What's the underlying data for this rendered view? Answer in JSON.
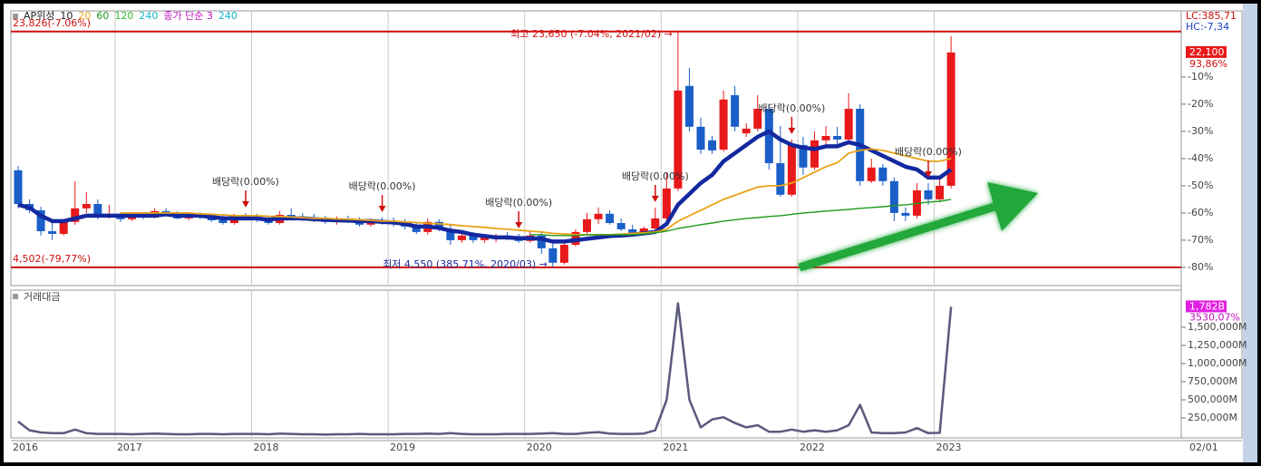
{
  "chart_data": [
    {
      "type": "candlestick",
      "legend": [
        {
          "text": "AP위성",
          "color": "#222222"
        },
        {
          "text": "10",
          "color": "#222222"
        },
        {
          "text": "20",
          "color": "#e8a317"
        },
        {
          "text": "60",
          "color": "#1e9b1e"
        },
        {
          "text": "120",
          "color": "#2fbf2f"
        },
        {
          "text": "240",
          "color": "#10b8c8"
        },
        {
          "text": "종가 단순 3",
          "color": "#c010c0"
        },
        {
          "text": "240",
          "color": "#10b8c8"
        }
      ],
      "up_color": "#e8191a",
      "down_color": "#1a5fc8",
      "ylim": [
        -86.7,
        14.3
      ],
      "yticks": [
        {
          "value": -10,
          "label": "-10%"
        },
        {
          "value": -20,
          "label": "-20%"
        },
        {
          "value": -30,
          "label": "-30%"
        },
        {
          "value": -40,
          "label": "-40%"
        },
        {
          "value": -50,
          "label": "-50%"
        },
        {
          "value": -60,
          "label": "-60%"
        },
        {
          "value": -70,
          "label": "-70%"
        },
        {
          "value": -80,
          "label": "-80%"
        }
      ],
      "hlines": [
        {
          "value": 6.7,
          "label": "23,826(-7.06%)",
          "color": "#d01010"
        },
        {
          "value": -80,
          "label": "4,502(-79,77%)",
          "color": "#d01010"
        }
      ],
      "lc_label": "LC:385,71",
      "hc_label": "HC:-7,34",
      "current_label": "22,100",
      "current_change": "93,86%",
      "high_note": {
        "index": 58,
        "text": "최고 23,650 (-7.04%, 2021/02) →",
        "color": "#d01010"
      },
      "low_note": {
        "index": 47,
        "text": "최저 4,550 (385.71%, 2020/03) →",
        "color": "#1a2a9a"
      },
      "dividends": [
        {
          "index": 20,
          "text": "배당락(0.00%)"
        },
        {
          "index": 32,
          "text": "배당락(0.00%)"
        },
        {
          "index": 44,
          "text": "배당락(0.00%)"
        },
        {
          "index": 56,
          "text": "배당락(0.00%)"
        },
        {
          "index": 68,
          "text": "배당락(0.00%)"
        },
        {
          "index": 80,
          "text": "배당락(0.00%)"
        }
      ],
      "ohlc": [
        [
          -44.3,
          -42.7,
          -58.3,
          -56.7
        ],
        [
          -56.7,
          -55,
          -60,
          -59
        ],
        [
          -59,
          -57.7,
          -68.3,
          -66.7
        ],
        [
          -66.7,
          -62.3,
          -70,
          -67.7
        ],
        [
          -67.7,
          -62.3,
          -68.3,
          -63.3
        ],
        [
          -63.3,
          -48.3,
          -64.3,
          -58.3
        ],
        [
          -58.3,
          -52.3,
          -60,
          -56.7
        ],
        [
          -56.7,
          -55,
          -62.3,
          -61.7
        ],
        [
          -61.7,
          -57,
          -62,
          -61
        ],
        [
          -61,
          -60,
          -63.3,
          -62.3
        ],
        [
          -62.3,
          -60.3,
          -63,
          -61
        ],
        [
          -61,
          -60,
          -62.3,
          -61.7
        ],
        [
          -61.7,
          -58.3,
          -62,
          -59.3
        ],
        [
          -59.3,
          -58.3,
          -61,
          -60.3
        ],
        [
          -60.3,
          -59.3,
          -62.3,
          -62
        ],
        [
          -62,
          -60,
          -62.7,
          -60.7
        ],
        [
          -60.7,
          -59.7,
          -62.3,
          -61.7
        ],
        [
          -61.7,
          -60.3,
          -63.3,
          -62.7
        ],
        [
          -62.7,
          -61,
          -64.3,
          -63.7
        ],
        [
          -63.7,
          -60.3,
          -64.3,
          -61
        ],
        [
          -61,
          -60,
          -62.3,
          -61.7
        ],
        [
          -61.7,
          -60.3,
          -63.3,
          -62.7
        ],
        [
          -62.7,
          -61,
          -64.3,
          -63.7
        ],
        [
          -63.7,
          -59.3,
          -64.3,
          -60.7
        ],
        [
          -60.7,
          -58.3,
          -62,
          -61.3
        ],
        [
          -61.3,
          -60,
          -63,
          -62
        ],
        [
          -62,
          -60.3,
          -63.3,
          -62.7
        ],
        [
          -62.7,
          -61,
          -64,
          -63.3
        ],
        [
          -63.3,
          -61.3,
          -64.3,
          -62
        ],
        [
          -62,
          -61,
          -63.7,
          -63
        ],
        [
          -63,
          -61.7,
          -65,
          -64.3
        ],
        [
          -64.3,
          -62,
          -65,
          -62.7
        ],
        [
          -62.7,
          -61.7,
          -64.3,
          -63.3
        ],
        [
          -63.3,
          -61.7,
          -65,
          -64
        ],
        [
          -64,
          -62.3,
          -66,
          -65
        ],
        [
          -65,
          -63.3,
          -67.7,
          -67
        ],
        [
          -67,
          -62,
          -68,
          -63.3
        ],
        [
          -63.3,
          -62.3,
          -66.7,
          -66
        ],
        [
          -66,
          -64,
          -71.7,
          -70
        ],
        [
          -70,
          -67,
          -71,
          -68.3
        ],
        [
          -68.3,
          -67,
          -71,
          -70
        ],
        [
          -70,
          -68,
          -71,
          -69
        ],
        [
          -69,
          -67.7,
          -70.7,
          -68.3
        ],
        [
          -68.3,
          -67,
          -70,
          -69.3
        ],
        [
          -69.3,
          -67.7,
          -71,
          -70.3
        ],
        [
          -70.3,
          -67,
          -71,
          -68.3
        ],
        [
          -68.3,
          -66.7,
          -75,
          -73
        ],
        [
          -73,
          -70,
          -80,
          -78.3
        ],
        [
          -78.3,
          -70,
          -79,
          -71.7
        ],
        [
          -71.7,
          -66,
          -72.3,
          -67
        ],
        [
          -67,
          -60,
          -68,
          -62.3
        ],
        [
          -62.3,
          -58,
          -64,
          -60.3
        ],
        [
          -60.3,
          -59,
          -64.3,
          -63.7
        ],
        [
          -63.7,
          -62,
          -66.7,
          -66
        ],
        [
          -66,
          -64.3,
          -68,
          -67.3
        ],
        [
          -67.3,
          -65,
          -68.3,
          -65.7
        ],
        [
          -65.7,
          -58,
          -66.3,
          -62
        ],
        [
          -62,
          -45,
          -63,
          -51
        ],
        [
          -51,
          6.7,
          -52,
          -15
        ],
        [
          -13.3,
          -6.7,
          -30,
          -28.3
        ],
        [
          -28.3,
          -25,
          -38.3,
          -36.7
        ],
        [
          -33.3,
          -31.7,
          -38.3,
          -37
        ],
        [
          -36.7,
          -15,
          -37.5,
          -18.3
        ],
        [
          -16.7,
          -13.3,
          -30,
          -28.3
        ],
        [
          -30.7,
          -27,
          -32,
          -29
        ],
        [
          -29,
          -16.7,
          -30,
          -21.7
        ],
        [
          -21.7,
          -20,
          -44,
          -41.7
        ],
        [
          -41.7,
          -28,
          -54,
          -53.3
        ],
        [
          -53.3,
          -33,
          -54,
          -35
        ],
        [
          -35,
          -32,
          -46,
          -43.3
        ],
        [
          -43.3,
          -30,
          -44,
          -33.3
        ],
        [
          -33.3,
          -28,
          -35,
          -31.7
        ],
        [
          -31.7,
          -28.3,
          -36,
          -33
        ],
        [
          -33,
          -16,
          -34,
          -21.7
        ],
        [
          -21.7,
          -20,
          -50,
          -48.3
        ],
        [
          -48.3,
          -40,
          -49,
          -43.3
        ],
        [
          -43.3,
          -42,
          -50,
          -48.3
        ],
        [
          -48.3,
          -47,
          -63,
          -60
        ],
        [
          -60,
          -58,
          -63,
          -61
        ],
        [
          -61,
          -49,
          -62,
          -51.7
        ],
        [
          -51.7,
          -49,
          -57,
          -55
        ],
        [
          -55,
          -47,
          -56,
          -50
        ],
        [
          -50,
          5,
          -51,
          -1
        ]
      ],
      "series": [
        {
          "color": "#1428a0",
          "values": [
            -57,
            -58,
            -61,
            -63,
            -63,
            -62,
            -61,
            -61,
            -61,
            -61,
            -61,
            -61,
            -61,
            -60.5,
            -61,
            -61,
            -61,
            -61.5,
            -62,
            -62,
            -62,
            -62,
            -62.5,
            -62,
            -62,
            -62,
            -62.3,
            -62.5,
            -62.7,
            -62.8,
            -63,
            -63,
            -63.3,
            -63.5,
            -64,
            -65,
            -65,
            -65.5,
            -66.5,
            -67,
            -68,
            -68.5,
            -69,
            -69,
            -69.3,
            -69.3,
            -69.5,
            -70.5,
            -70.5,
            -70,
            -69.5,
            -69,
            -68.5,
            -68.3,
            -68,
            -67.5,
            -67,
            -64,
            -57,
            -53,
            -49,
            -46,
            -41,
            -38,
            -35,
            -32,
            -30,
            -33,
            -35,
            -36,
            -36.5,
            -35.5,
            -35.5,
            -34,
            -35,
            -37,
            -39,
            -41,
            -43,
            -44,
            -47,
            -47,
            -44
          ]
        },
        {
          "color": "#e8a317",
          "values": [
            null,
            null,
            null,
            null,
            null,
            null,
            null,
            null,
            null,
            -60,
            -60,
            -60,
            -60,
            -60,
            -60,
            -60,
            -60.3,
            -60.5,
            -60.7,
            -61,
            -61,
            -61,
            -61.2,
            -61.3,
            -61.5,
            -61.7,
            -62,
            -62,
            -62.2,
            -62.3,
            -62.5,
            -62.7,
            -63,
            -63,
            -63.3,
            -63.5,
            -63.8,
            -64,
            -64.3,
            -64.7,
            -65,
            -65.3,
            -65.7,
            -66,
            -66.3,
            -66.7,
            -67,
            -67.5,
            -67.7,
            -68,
            -68,
            -68,
            -68,
            -67.8,
            -67.5,
            -67.3,
            -67,
            -66,
            -63,
            -61,
            -59,
            -57,
            -55,
            -53.5,
            -52,
            -50.5,
            -50,
            -50,
            -49,
            -47,
            -45,
            -43,
            -41.5,
            -38,
            -37,
            -36.5,
            -37,
            -38,
            -39,
            -40,
            -41,
            -41,
            -40
          ]
        },
        {
          "color": "#1e9b1e",
          "values": [
            null,
            null,
            null,
            null,
            null,
            null,
            null,
            null,
            null,
            null,
            null,
            null,
            null,
            null,
            null,
            null,
            null,
            null,
            null,
            null,
            null,
            null,
            null,
            null,
            null,
            null,
            null,
            null,
            null,
            null,
            null,
            null,
            null,
            null,
            null,
            null,
            null,
            null,
            null,
            null,
            null,
            null,
            null,
            null,
            null,
            -68,
            -68,
            -68.3,
            -68.3,
            -68.3,
            -68,
            -68,
            -68,
            -68,
            -68,
            -67.7,
            -67.3,
            -66.7,
            -65.7,
            -65,
            -64.3,
            -63.7,
            -63,
            -62.5,
            -62,
            -61.7,
            -61.3,
            -61,
            -60.5,
            -60,
            -59.7,
            -59.3,
            -59,
            -58.7,
            -58.3,
            -58,
            -57.7,
            -57.3,
            -57,
            -56.5,
            -56,
            -55.7,
            -55
          ]
        }
      ]
    },
    {
      "type": "line",
      "title": "거래대금",
      "color": "#5a5a7c",
      "ylim": [
        -25000,
        2012500
      ],
      "yticks": [
        {
          "value": 250000,
          "label": "250,000M"
        },
        {
          "value": 500000,
          "label": "500,000M"
        },
        {
          "value": 750000,
          "label": "750,000M"
        },
        {
          "value": 1000000,
          "label": "1,000,000M"
        },
        {
          "value": 1250000,
          "label": "1,250,000M"
        },
        {
          "value": 1500000,
          "label": "1,500,000M"
        }
      ],
      "current_label": "1,782B",
      "current_change": "3530,07%",
      "date_label": "02/01",
      "categories": [
        "2016",
        null,
        null,
        null,
        null,
        null,
        null,
        null,
        null,
        "2017",
        null,
        null,
        null,
        null,
        null,
        null,
        null,
        null,
        null,
        null,
        null,
        "2018",
        null,
        null,
        null,
        null,
        null,
        null,
        null,
        null,
        null,
        null,
        null,
        "2019",
        null,
        null,
        null,
        null,
        null,
        null,
        null,
        null,
        null,
        null,
        null,
        "2020",
        null,
        null,
        null,
        null,
        null,
        null,
        null,
        null,
        null,
        null,
        null,
        "2021",
        null,
        null,
        null,
        null,
        null,
        null,
        null,
        null,
        null,
        null,
        null,
        "2022",
        null,
        null,
        null,
        null,
        null,
        null,
        null,
        null,
        null,
        null,
        null,
        "2023",
        null
      ],
      "values": [
        200000,
        80000,
        50000,
        40000,
        40000,
        90000,
        40000,
        30000,
        30000,
        30000,
        25000,
        30000,
        35000,
        30000,
        25000,
        25000,
        30000,
        30000,
        25000,
        30000,
        30000,
        30000,
        25000,
        35000,
        30000,
        25000,
        25000,
        20000,
        25000,
        25000,
        30000,
        25000,
        25000,
        25000,
        30000,
        30000,
        35000,
        30000,
        40000,
        30000,
        25000,
        25000,
        25000,
        30000,
        30000,
        30000,
        35000,
        40000,
        30000,
        30000,
        45000,
        55000,
        35000,
        30000,
        30000,
        35000,
        80000,
        500000,
        1830000,
        500000,
        120000,
        230000,
        260000,
        180000,
        120000,
        150000,
        60000,
        60000,
        90000,
        60000,
        80000,
        60000,
        80000,
        150000,
        430000,
        50000,
        40000,
        40000,
        50000,
        110000,
        40000,
        45000,
        1782000
      ]
    }
  ]
}
